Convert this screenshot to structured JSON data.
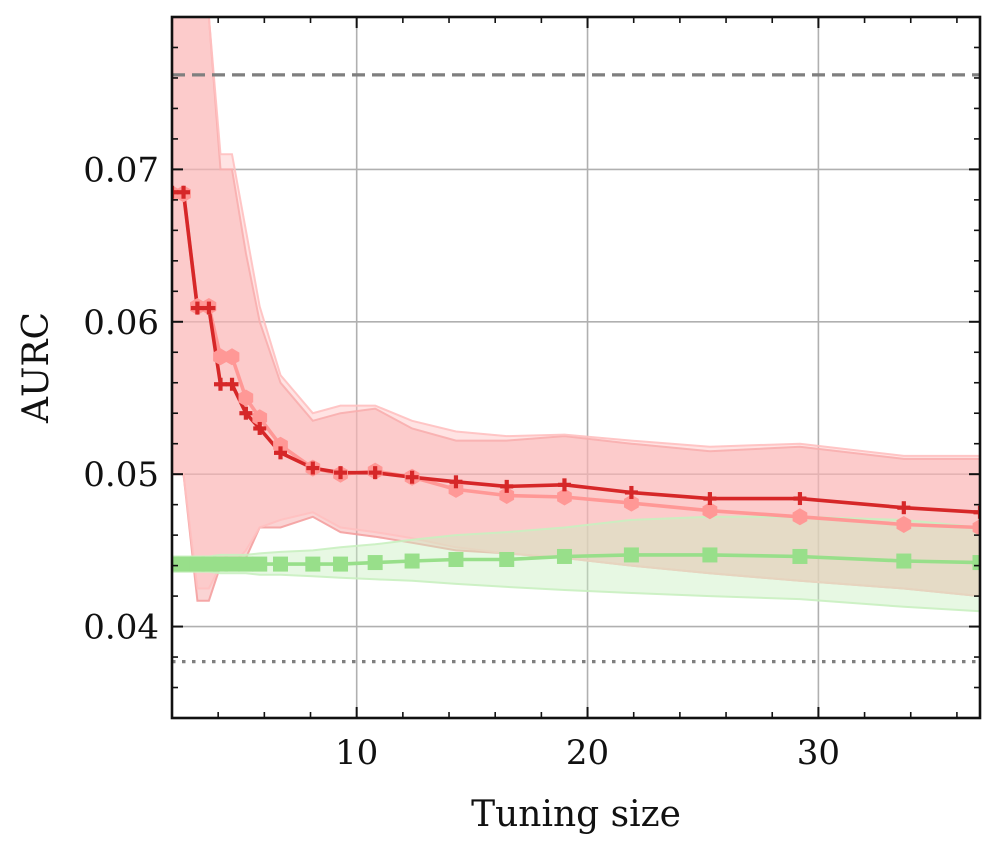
{
  "chart_data": {
    "type": "line",
    "title": "",
    "xlabel": "Tuning size",
    "ylabel": "AURC",
    "xlim": [
      2,
      37
    ],
    "ylim": [
      0.034,
      0.08
    ],
    "x_ticks": [
      10,
      20,
      30
    ],
    "x_tick_labels": [
      "10",
      "20",
      "30"
    ],
    "y_ticks": [
      0.04,
      0.05,
      0.06,
      0.07
    ],
    "y_tick_labels": [
      "0.04",
      "0.05",
      "0.06",
      "0.07"
    ],
    "grid": true,
    "reference_lines": [
      {
        "name": "upper-reference",
        "y": 0.0762,
        "style": "dashed",
        "color": "#7f7f7f"
      },
      {
        "name": "lower-reference",
        "y": 0.0377,
        "style": "dotted",
        "color": "#7f7f7f"
      }
    ],
    "series": [
      {
        "name": "series-dark-red",
        "color": "#d62728",
        "marker": "plus",
        "band_color": "#f4a0a0",
        "x": [
          2.0,
          2.5,
          3.1,
          3.6,
          4.1,
          4.6,
          5.2,
          5.8,
          6.7,
          8.1,
          9.3,
          10.8,
          12.4,
          14.3,
          16.5,
          19.0,
          21.9,
          25.3,
          29.2,
          33.7,
          37.0
        ],
        "values": [
          0.0685,
          0.0685,
          0.0609,
          0.0609,
          0.0559,
          0.0559,
          0.054,
          0.053,
          0.0514,
          0.0504,
          0.0501,
          0.0501,
          0.0498,
          0.0495,
          0.0492,
          0.0493,
          0.0488,
          0.0484,
          0.0484,
          0.0478,
          0.0475
        ],
        "lower": [
          0.05,
          0.05,
          0.0417,
          0.0417,
          0.044,
          0.044,
          0.0445,
          0.0465,
          0.0465,
          0.0472,
          0.0462,
          0.0459,
          0.0455,
          0.045,
          0.0448,
          0.0445,
          0.044,
          0.0435,
          0.043,
          0.0425,
          0.042
        ],
        "upper": [
          0.08,
          0.08,
          0.08,
          0.08,
          0.07,
          0.07,
          0.0645,
          0.06,
          0.056,
          0.0535,
          0.054,
          0.0543,
          0.053,
          0.0522,
          0.0522,
          0.0525,
          0.052,
          0.0515,
          0.0518,
          0.051,
          0.051
        ]
      },
      {
        "name": "series-light-red",
        "color": "#ff9896",
        "marker": "hexagon",
        "band_color": "#ffc0c0",
        "x": [
          2.0,
          2.5,
          3.1,
          3.6,
          4.1,
          4.6,
          5.2,
          5.8,
          6.7,
          8.1,
          9.3,
          10.8,
          12.4,
          14.3,
          16.5,
          19.0,
          21.9,
          25.3,
          29.2,
          33.7,
          37.0
        ],
        "values": [
          0.0684,
          0.0684,
          0.061,
          0.061,
          0.0577,
          0.0577,
          0.055,
          0.0537,
          0.0519,
          0.0504,
          0.05,
          0.0502,
          0.0498,
          0.049,
          0.0486,
          0.0485,
          0.0481,
          0.0476,
          0.0472,
          0.0467,
          0.0465
        ],
        "lower": [
          0.05,
          0.05,
          0.0425,
          0.0425,
          0.044,
          0.044,
          0.045,
          0.0465,
          0.047,
          0.0475,
          0.0465,
          0.0462,
          0.0458,
          0.0452,
          0.0448,
          0.0445,
          0.044,
          0.0435,
          0.043,
          0.0425,
          0.042
        ],
        "upper": [
          0.08,
          0.08,
          0.08,
          0.08,
          0.071,
          0.071,
          0.066,
          0.061,
          0.0565,
          0.054,
          0.0545,
          0.0545,
          0.0535,
          0.0528,
          0.0525,
          0.0526,
          0.0522,
          0.0518,
          0.052,
          0.0512,
          0.0512
        ]
      },
      {
        "name": "series-green",
        "color": "#98df8a",
        "marker": "square",
        "band_color": "#c9efc0",
        "x": [
          2.0,
          2.5,
          3.1,
          3.6,
          4.1,
          4.6,
          5.2,
          5.8,
          6.7,
          8.1,
          9.3,
          10.8,
          12.4,
          14.3,
          16.5,
          19.0,
          21.9,
          25.3,
          29.2,
          33.7,
          37.0
        ],
        "values": [
          0.0441,
          0.0441,
          0.0441,
          0.0441,
          0.0441,
          0.0441,
          0.0441,
          0.0441,
          0.0441,
          0.0441,
          0.0441,
          0.0442,
          0.0443,
          0.0444,
          0.0444,
          0.0446,
          0.0447,
          0.0447,
          0.0446,
          0.0443,
          0.0442
        ],
        "lower": [
          0.0436,
          0.0436,
          0.0436,
          0.0436,
          0.0435,
          0.0435,
          0.0435,
          0.0434,
          0.0434,
          0.0433,
          0.0432,
          0.0431,
          0.043,
          0.0428,
          0.0426,
          0.0424,
          0.0422,
          0.042,
          0.0418,
          0.0413,
          0.041
        ],
        "upper": [
          0.0446,
          0.0446,
          0.0446,
          0.0446,
          0.0447,
          0.0447,
          0.0447,
          0.0448,
          0.0449,
          0.045,
          0.0452,
          0.0454,
          0.0457,
          0.046,
          0.0462,
          0.0465,
          0.047,
          0.0472,
          0.0472,
          0.047,
          0.0465
        ]
      }
    ]
  }
}
